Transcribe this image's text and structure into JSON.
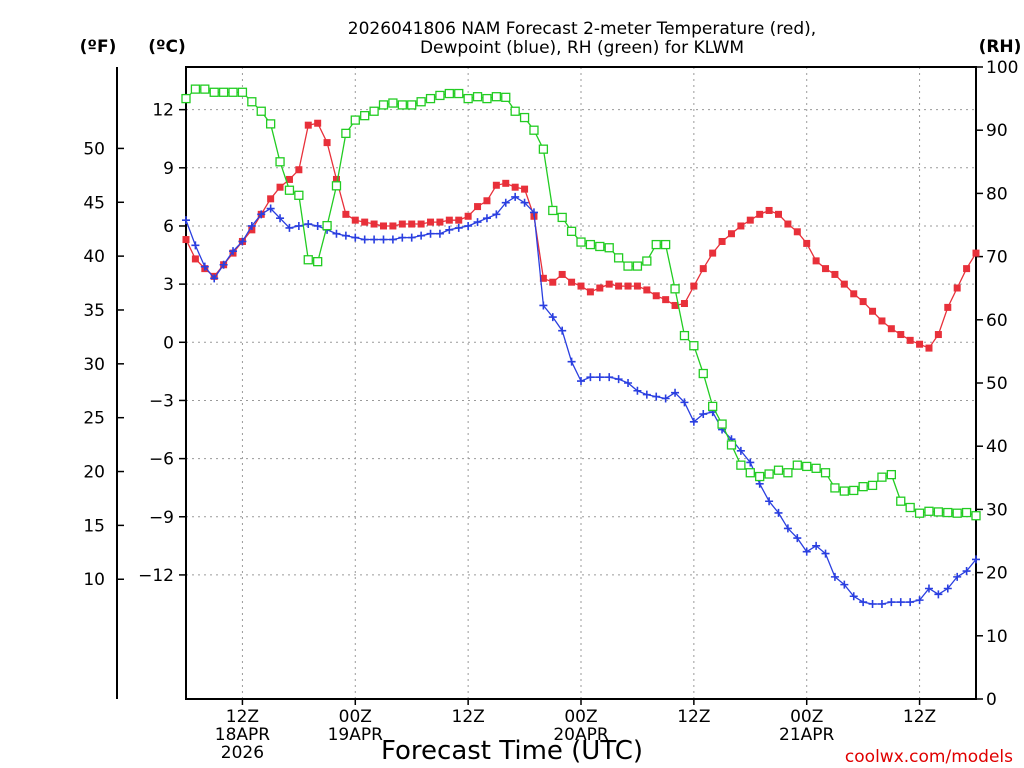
{
  "chart_data": {
    "type": "line",
    "title": [
      "2026041806 NAM Forecast 2-meter Temperature (red),",
      "Dewpoint (blue), RH (green) for KLWM"
    ],
    "xlabel": "Forecast Time (UTC)",
    "credit": "coolwx.com/models",
    "units": {
      "fahrenheit": "(ºF)",
      "celsius": "(ºC)",
      "rh": "(RH)"
    },
    "x_unit": "hours since 2026-04-18 06Z",
    "xlim": [
      0,
      84
    ],
    "x_ticks": [
      {
        "x": 6,
        "lines": [
          "12Z",
          "18APR",
          "2026"
        ]
      },
      {
        "x": 18,
        "lines": [
          "00Z",
          "19APR"
        ]
      },
      {
        "x": 30,
        "lines": [
          "12Z"
        ]
      },
      {
        "x": 42,
        "lines": [
          "00Z",
          "20APR"
        ]
      },
      {
        "x": 54,
        "lines": [
          "12Z"
        ]
      },
      {
        "x": 66,
        "lines": [
          "00Z",
          "21APR"
        ]
      },
      {
        "x": 78,
        "lines": [
          "12Z"
        ]
      }
    ],
    "celsius_axis": {
      "ylim": [
        -18.4,
        14.2
      ],
      "ticks": [
        12,
        9,
        6,
        3,
        0,
        -3,
        -6,
        -9,
        -12
      ],
      "tick_labels": [
        "12",
        "9",
        "6",
        "3",
        "0",
        "−3",
        "−6",
        "−9",
        "−12"
      ]
    },
    "fahrenheit_axis": {
      "ticks": [
        50,
        45,
        40,
        35,
        30,
        25,
        20,
        15,
        10
      ],
      "tick_labels": [
        "50",
        "45",
        "40",
        "35",
        "30",
        "25",
        "20",
        "15",
        "10"
      ]
    },
    "rh_axis": {
      "ylim": [
        0,
        100
      ],
      "ticks": [
        100,
        90,
        80,
        70,
        60,
        50,
        40,
        30,
        20,
        10,
        0
      ],
      "tick_labels": [
        "100",
        "90",
        "80",
        "70",
        "60",
        "50",
        "40",
        "30",
        "20",
        "10",
        "0"
      ]
    },
    "series": [
      {
        "name": "Temperature",
        "unit": "C",
        "color": "#e8303a",
        "marker": "filled-square",
        "values": [
          [
            0,
            5.3
          ],
          [
            1,
            4.3
          ],
          [
            2,
            3.8
          ],
          [
            3,
            3.4
          ],
          [
            4,
            4.0
          ],
          [
            5,
            4.6
          ],
          [
            6,
            5.2
          ],
          [
            7,
            5.8
          ],
          [
            8,
            6.6
          ],
          [
            9,
            7.4
          ],
          [
            10,
            8.0
          ],
          [
            11,
            8.4
          ],
          [
            12,
            8.9
          ],
          [
            13,
            11.2
          ],
          [
            14,
            11.3
          ],
          [
            15,
            10.3
          ],
          [
            16,
            8.4
          ],
          [
            17,
            6.6
          ],
          [
            18,
            6.3
          ],
          [
            19,
            6.2
          ],
          [
            20,
            6.1
          ],
          [
            21,
            6.0
          ],
          [
            22,
            6.0
          ],
          [
            23,
            6.1
          ],
          [
            24,
            6.1
          ],
          [
            25,
            6.1
          ],
          [
            26,
            6.2
          ],
          [
            27,
            6.2
          ],
          [
            28,
            6.3
          ],
          [
            29,
            6.3
          ],
          [
            30,
            6.5
          ],
          [
            31,
            7.0
          ],
          [
            32,
            7.3
          ],
          [
            33,
            8.1
          ],
          [
            34,
            8.2
          ],
          [
            35,
            8.0
          ],
          [
            36,
            7.9
          ],
          [
            37,
            6.5
          ],
          [
            38,
            3.3
          ],
          [
            39,
            3.1
          ],
          [
            40,
            3.5
          ],
          [
            41,
            3.1
          ],
          [
            42,
            2.9
          ],
          [
            43,
            2.6
          ],
          [
            44,
            2.8
          ],
          [
            45,
            3.0
          ],
          [
            46,
            2.9
          ],
          [
            47,
            2.9
          ],
          [
            48,
            2.9
          ],
          [
            49,
            2.7
          ],
          [
            50,
            2.4
          ],
          [
            51,
            2.2
          ],
          [
            52,
            1.9
          ],
          [
            53,
            2.0
          ],
          [
            54,
            2.9
          ],
          [
            55,
            3.8
          ],
          [
            56,
            4.6
          ],
          [
            57,
            5.2
          ],
          [
            58,
            5.6
          ],
          [
            59,
            6.0
          ],
          [
            60,
            6.3
          ],
          [
            61,
            6.6
          ],
          [
            62,
            6.8
          ],
          [
            63,
            6.6
          ],
          [
            64,
            6.1
          ],
          [
            65,
            5.7
          ],
          [
            66,
            5.1
          ],
          [
            67,
            4.2
          ],
          [
            68,
            3.8
          ],
          [
            69,
            3.5
          ],
          [
            70,
            3.0
          ],
          [
            71,
            2.5
          ],
          [
            72,
            2.1
          ],
          [
            73,
            1.6
          ],
          [
            74,
            1.1
          ],
          [
            75,
            0.7
          ],
          [
            76,
            0.4
          ],
          [
            77,
            0.1
          ],
          [
            78,
            -0.1
          ],
          [
            79,
            -0.3
          ],
          [
            80,
            0.4
          ],
          [
            81,
            1.8
          ],
          [
            82,
            2.8
          ],
          [
            83,
            3.8
          ],
          [
            84,
            4.6
          ]
        ]
      },
      {
        "name": "Dewpoint",
        "unit": "C",
        "color": "#2a3fe0",
        "marker": "plus",
        "values": [
          [
            0,
            6.3
          ],
          [
            1,
            5.0
          ],
          [
            2,
            3.9
          ],
          [
            3,
            3.3
          ],
          [
            4,
            4.0
          ],
          [
            5,
            4.7
          ],
          [
            6,
            5.2
          ],
          [
            7,
            6.0
          ],
          [
            8,
            6.6
          ],
          [
            9,
            6.9
          ],
          [
            10,
            6.4
          ],
          [
            11,
            5.9
          ],
          [
            12,
            6.0
          ],
          [
            13,
            6.1
          ],
          [
            14,
            6.0
          ],
          [
            15,
            5.8
          ],
          [
            16,
            5.6
          ],
          [
            17,
            5.5
          ],
          [
            18,
            5.4
          ],
          [
            19,
            5.3
          ],
          [
            20,
            5.3
          ],
          [
            21,
            5.3
          ],
          [
            22,
            5.3
          ],
          [
            23,
            5.4
          ],
          [
            24,
            5.4
          ],
          [
            25,
            5.5
          ],
          [
            26,
            5.6
          ],
          [
            27,
            5.6
          ],
          [
            28,
            5.8
          ],
          [
            29,
            5.9
          ],
          [
            30,
            6.0
          ],
          [
            31,
            6.2
          ],
          [
            32,
            6.4
          ],
          [
            33,
            6.6
          ],
          [
            34,
            7.2
          ],
          [
            35,
            7.5
          ],
          [
            36,
            7.2
          ],
          [
            37,
            6.7
          ],
          [
            38,
            1.9
          ],
          [
            39,
            1.3
          ],
          [
            40,
            0.6
          ],
          [
            41,
            -1.0
          ],
          [
            42,
            -2.0
          ],
          [
            43,
            -1.8
          ],
          [
            44,
            -1.8
          ],
          [
            45,
            -1.8
          ],
          [
            46,
            -1.9
          ],
          [
            47,
            -2.1
          ],
          [
            48,
            -2.5
          ],
          [
            49,
            -2.7
          ],
          [
            50,
            -2.8
          ],
          [
            51,
            -2.9
          ],
          [
            52,
            -2.6
          ],
          [
            53,
            -3.1
          ],
          [
            54,
            -4.1
          ],
          [
            55,
            -3.7
          ],
          [
            56,
            -3.6
          ],
          [
            57,
            -4.5
          ],
          [
            58,
            -5.0
          ],
          [
            59,
            -5.6
          ],
          [
            60,
            -6.2
          ],
          [
            61,
            -7.3
          ],
          [
            62,
            -8.2
          ],
          [
            63,
            -8.8
          ],
          [
            64,
            -9.6
          ],
          [
            65,
            -10.1
          ],
          [
            66,
            -10.8
          ],
          [
            67,
            -10.5
          ],
          [
            68,
            -10.9
          ],
          [
            69,
            -12.1
          ],
          [
            70,
            -12.5
          ],
          [
            71,
            -13.1
          ],
          [
            72,
            -13.4
          ],
          [
            73,
            -13.5
          ],
          [
            74,
            -13.5
          ],
          [
            75,
            -13.4
          ],
          [
            76,
            -13.4
          ],
          [
            77,
            -13.4
          ],
          [
            78,
            -13.3
          ],
          [
            79,
            -12.7
          ],
          [
            80,
            -13.0
          ],
          [
            81,
            -12.7
          ],
          [
            82,
            -12.1
          ],
          [
            83,
            -11.8
          ],
          [
            84,
            -11.2
          ]
        ]
      },
      {
        "name": "RH",
        "unit": "%",
        "color": "#22cc22",
        "marker": "open-square",
        "values": [
          [
            0,
            95
          ],
          [
            1,
            96.5
          ],
          [
            2,
            96.5
          ],
          [
            3,
            96
          ],
          [
            4,
            96
          ],
          [
            5,
            96
          ],
          [
            6,
            96
          ],
          [
            7,
            94.5
          ],
          [
            8,
            93
          ],
          [
            9,
            91
          ],
          [
            10,
            85
          ],
          [
            11,
            80.5
          ],
          [
            12,
            79.7
          ],
          [
            13,
            69.5
          ],
          [
            14,
            69.2
          ],
          [
            15,
            74.9
          ],
          [
            16,
            81.2
          ],
          [
            17,
            89.5
          ],
          [
            18,
            91.6
          ],
          [
            19,
            92.3
          ],
          [
            20,
            93
          ],
          [
            21,
            94
          ],
          [
            22,
            94.3
          ],
          [
            23,
            94
          ],
          [
            24,
            94
          ],
          [
            25,
            94.5
          ],
          [
            26,
            95
          ],
          [
            27,
            95.5
          ],
          [
            28,
            95.8
          ],
          [
            29,
            95.8
          ],
          [
            30,
            95
          ],
          [
            31,
            95.3
          ],
          [
            32,
            95
          ],
          [
            33,
            95.3
          ],
          [
            34,
            95.2
          ],
          [
            35,
            93
          ],
          [
            36,
            92
          ],
          [
            37,
            90
          ],
          [
            38,
            87
          ],
          [
            39,
            77.3
          ],
          [
            40,
            76.2
          ],
          [
            41,
            74
          ],
          [
            42,
            72.3
          ],
          [
            43,
            71.9
          ],
          [
            44,
            71.6
          ],
          [
            45,
            71.4
          ],
          [
            46,
            69.8
          ],
          [
            47,
            68.5
          ],
          [
            48,
            68.5
          ],
          [
            49,
            69.3
          ],
          [
            50,
            71.9
          ],
          [
            51,
            71.9
          ],
          [
            52,
            64.9
          ],
          [
            53,
            57.5
          ],
          [
            54,
            55.9
          ],
          [
            55,
            51.5
          ],
          [
            56,
            46.3
          ],
          [
            57,
            43.5
          ],
          [
            58,
            40.2
          ],
          [
            59,
            37
          ],
          [
            60,
            35.8
          ],
          [
            61,
            35.2
          ],
          [
            62,
            35.6
          ],
          [
            63,
            36.2
          ],
          [
            64,
            35.8
          ],
          [
            65,
            37
          ],
          [
            66,
            36.8
          ],
          [
            67,
            36.5
          ],
          [
            68,
            35.8
          ],
          [
            69,
            33.4
          ],
          [
            70,
            32.9
          ],
          [
            71,
            33
          ],
          [
            72,
            33.6
          ],
          [
            73,
            33.8
          ],
          [
            74,
            35.1
          ],
          [
            75,
            35.5
          ],
          [
            76,
            31.3
          ],
          [
            77,
            30.3
          ],
          [
            78,
            29.4
          ],
          [
            79,
            29.7
          ],
          [
            80,
            29.6
          ],
          [
            81,
            29.5
          ],
          [
            82,
            29.4
          ],
          [
            83,
            29.5
          ],
          [
            84,
            29
          ]
        ]
      }
    ]
  }
}
